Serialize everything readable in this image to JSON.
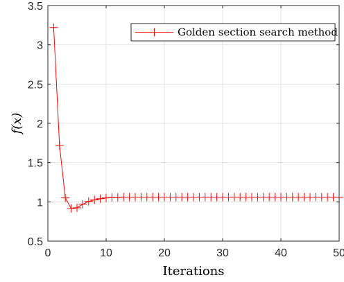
{
  "chart_data": {
    "type": "line",
    "xlabel": "Iterations",
    "ylabel": "f(x)",
    "xlim": [
      0,
      50
    ],
    "ylim": [
      0.5,
      3.5
    ],
    "xticks": [
      0,
      10,
      20,
      30,
      40,
      50
    ],
    "yticks": [
      0.5,
      1,
      1.5,
      2,
      2.5,
      3,
      3.5
    ],
    "xtick_labels": [
      "0",
      "10",
      "20",
      "30",
      "40",
      "50"
    ],
    "ytick_labels": [
      "0.5",
      "1",
      "1.5",
      "2",
      "2.5",
      "3",
      "3.5"
    ],
    "grid": true,
    "legend_position": "top-right",
    "series": [
      {
        "name": "Golden section search method",
        "color": "#ff0000",
        "marker": "plus",
        "x": [
          1,
          2,
          3,
          4,
          5,
          6,
          7,
          8,
          9,
          10,
          11,
          12,
          13,
          14,
          15,
          16,
          17,
          18,
          19,
          20,
          21,
          22,
          23,
          24,
          25,
          26,
          27,
          28,
          29,
          30,
          31,
          32,
          33,
          34,
          35,
          36,
          37,
          38,
          39,
          40,
          41,
          42,
          43,
          44,
          45,
          46,
          47,
          48,
          49,
          50
        ],
        "y": [
          3.22,
          1.72,
          1.05,
          0.915,
          0.925,
          0.97,
          1.005,
          1.025,
          1.04,
          1.05,
          1.055,
          1.058,
          1.06,
          1.06,
          1.06,
          1.06,
          1.06,
          1.06,
          1.06,
          1.06,
          1.06,
          1.06,
          1.06,
          1.06,
          1.06,
          1.06,
          1.06,
          1.06,
          1.06,
          1.06,
          1.06,
          1.06,
          1.06,
          1.06,
          1.06,
          1.06,
          1.06,
          1.06,
          1.06,
          1.06,
          1.06,
          1.06,
          1.06,
          1.06,
          1.06,
          1.06,
          1.06,
          1.06,
          1.06,
          1.06
        ]
      }
    ]
  }
}
